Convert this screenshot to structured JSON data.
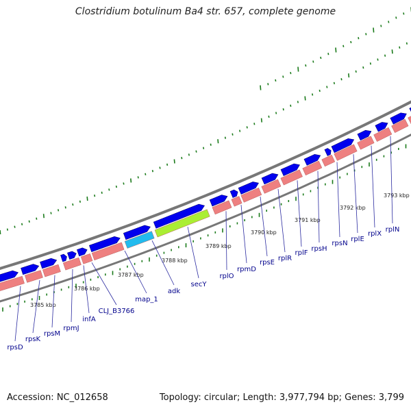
{
  "title": "Clostridium botulinum Ba4 str. 657, complete genome",
  "footer": {
    "accession": "Accession: NC_012658",
    "summary": "Topology: circular; Length: 3,977,794 bp; Genes: 3,799"
  },
  "colors": {
    "forward_gene": "#0000ee",
    "reverse_gene": "#ee8080",
    "backbone": "#888888",
    "highlight_cyan": "#22bbee",
    "highlight_green": "#aaee33",
    "gc_ticks": "#1a7a1a",
    "label_text": "#00008b"
  },
  "gene_labels": [
    "rpsD",
    "rpsK",
    "rpsM",
    "rpmJ",
    "infA",
    "CLJ_B3766",
    "map_1",
    "adk",
    "secY",
    "rplO",
    "rpmD",
    "rpsE",
    "rplR",
    "rplF",
    "rpsH",
    "rpsN",
    "rplE",
    "rplX",
    "rplN"
  ],
  "kbp_labels": [
    "3785 kbp",
    "3786 kbp",
    "3787 kbp",
    "3788 kbp",
    "3789 kbp",
    "3790 kbp",
    "3791 kbp",
    "3792 kbp",
    "3793 kbp"
  ]
}
